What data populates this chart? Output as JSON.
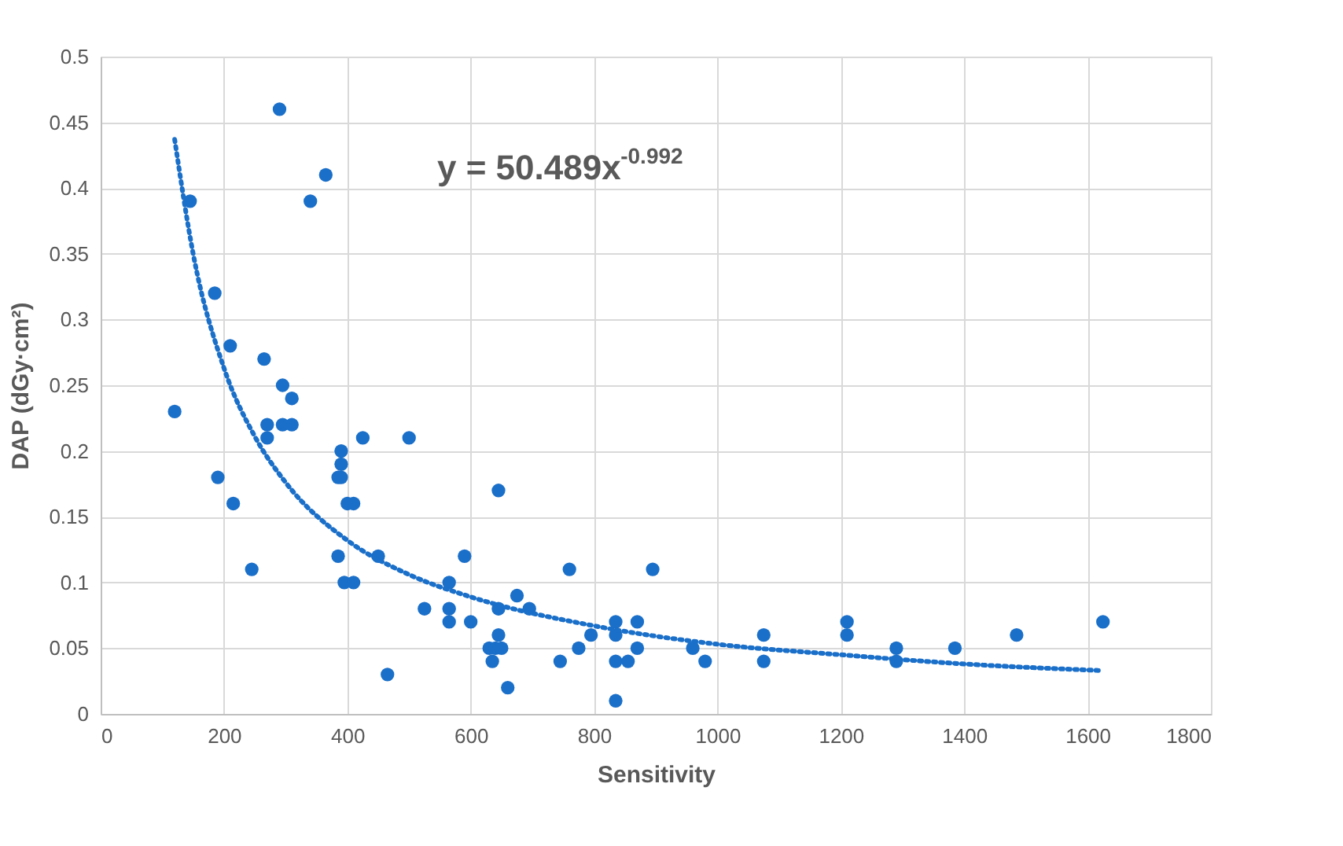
{
  "chart_data": {
    "type": "scatter",
    "xlabel": "Sensitivity",
    "ylabel": "DAP (dGy·cm²)",
    "xlim": [
      0,
      1800
    ],
    "xticks": [
      0,
      200,
      400,
      600,
      800,
      1000,
      1200,
      1400,
      1600,
      1800
    ],
    "ylim": [
      0,
      0.5
    ],
    "yticks": [
      0,
      0.05,
      0.1,
      0.15,
      0.2,
      0.25,
      0.3,
      0.35,
      0.4,
      0.45,
      0.5
    ],
    "grid": true,
    "marker": "circle",
    "annotations": [
      "y = 50.489x$^{-0.992}$"
    ],
    "series": [
      {
        "color": "#1a6fc9",
        "x": [
          120,
          145,
          185,
          190,
          210,
          215,
          245,
          265,
          270,
          270,
          290,
          295,
          295,
          310,
          310,
          340,
          365,
          385,
          385,
          390,
          390,
          390,
          395,
          400,
          410,
          410,
          425,
          450,
          465,
          500,
          525,
          565,
          565,
          565,
          590,
          600,
          630,
          635,
          640,
          645,
          645,
          645,
          650,
          660,
          675,
          695,
          745,
          760,
          775,
          795,
          835,
          835,
          835,
          835,
          855,
          870,
          870,
          895,
          960,
          980,
          1075,
          1075,
          1210,
          1210,
          1290,
          1290,
          1385,
          1485,
          1625
        ],
        "values": [
          0.23,
          0.39,
          0.32,
          0.18,
          0.28,
          0.16,
          0.11,
          0.27,
          0.21,
          0.22,
          0.46,
          0.25,
          0.22,
          0.24,
          0.22,
          0.39,
          0.41,
          0.18,
          0.12,
          0.2,
          0.19,
          0.18,
          0.1,
          0.16,
          0.16,
          0.1,
          0.21,
          0.12,
          0.03,
          0.21,
          0.08,
          0.1,
          0.08,
          0.07,
          0.12,
          0.07,
          0.05,
          0.04,
          0.05,
          0.17,
          0.08,
          0.06,
          0.05,
          0.02,
          0.09,
          0.08,
          0.04,
          0.11,
          0.05,
          0.06,
          0.07,
          0.06,
          0.04,
          0.01,
          0.04,
          0.07,
          0.05,
          0.11,
          0.05,
          0.04,
          0.06,
          0.04,
          0.07,
          0.06,
          0.05,
          0.04,
          0.05,
          0.06,
          0.07
        ]
      },
      {
        "type": "line",
        "line_style": "dotted",
        "marker": "none",
        "color": "#1a6fc9",
        "x": [
          120,
          150,
          200,
          250,
          300,
          400,
          500,
          600,
          800,
          1000,
          1200,
          1400,
          1620
        ],
        "values": [
          0.437,
          0.35,
          0.263,
          0.211,
          0.176,
          0.132,
          0.106,
          0.089,
          0.067,
          0.053,
          0.045,
          0.038,
          0.033
        ]
      }
    ]
  }
}
